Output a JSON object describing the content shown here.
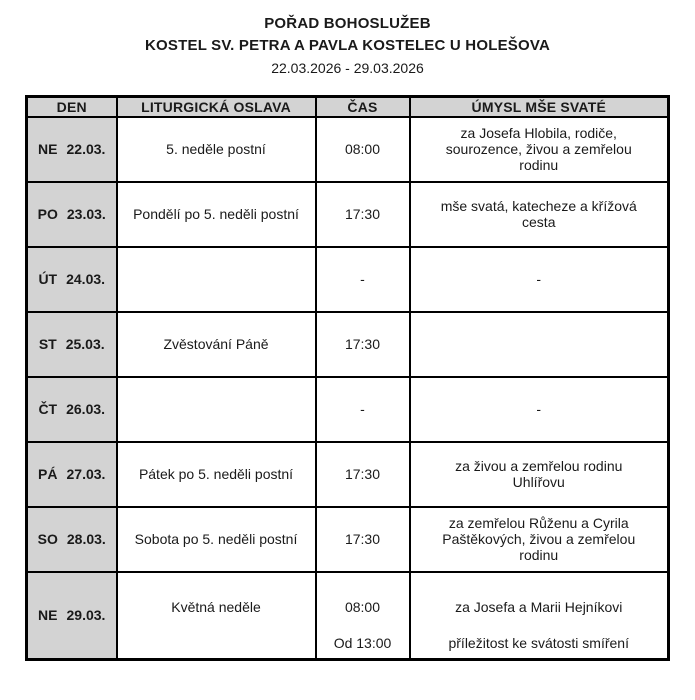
{
  "header": {
    "title": "POŘAD BOHOSLUŽEB",
    "subtitle": "KOSTEL SV. PETRA A PAVLA KOSTELEC U HOLEŠOVA",
    "date_range": "22.03.2026 - 29.03.2026"
  },
  "table": {
    "columns": [
      "DEN",
      "LITURGICKÁ OSLAVA",
      "ČAS",
      "ÚMYSL MŠE SVATÉ"
    ],
    "rows": [
      {
        "day": "NE",
        "date": "22.03.",
        "celebration": "5. neděle postní",
        "time": "08:00",
        "intention": "za Josefa Hlobila, rodiče,\nsourozence, živou a zemřelou\nrodinu"
      },
      {
        "day": "PO",
        "date": "23.03.",
        "celebration": "Pondělí po 5. neděli postní",
        "time": "17:30",
        "intention": "mše svatá, katecheze a křížová\ncesta"
      },
      {
        "day": "ÚT",
        "date": "24.03.",
        "celebration": "",
        "time": "-",
        "intention": "-"
      },
      {
        "day": "ST",
        "date": "25.03.",
        "celebration": "Zvěstování Páně",
        "time": "17:30",
        "intention": ""
      },
      {
        "day": "ČT",
        "date": "26.03.",
        "celebration": "",
        "time": "-",
        "intention": "-"
      },
      {
        "day": "PÁ",
        "date": "27.03.",
        "celebration": "Pátek po 5. neděli postní",
        "time": "17:30",
        "intention": "za živou a zemřelou rodinu\nUhlířovu"
      },
      {
        "day": "SO",
        "date": "28.03.",
        "celebration": "Sobota po 5. neděli postní",
        "time": "17:30",
        "intention": "za zemřelou Růženu a Cyrila\nPaštěkových, živou a zemřelou\nrodinu"
      },
      {
        "day": "NE",
        "date": "29.03.",
        "celebration": "Květná neděle",
        "time": "08:00",
        "intention": "za Josefa a Marii Hejníkovi",
        "time2": "Od 13:00",
        "intention2": "příležitost ke svátosti smíření"
      }
    ]
  },
  "colors": {
    "header_bg": "#d3d3d3",
    "border": "#000000"
  }
}
